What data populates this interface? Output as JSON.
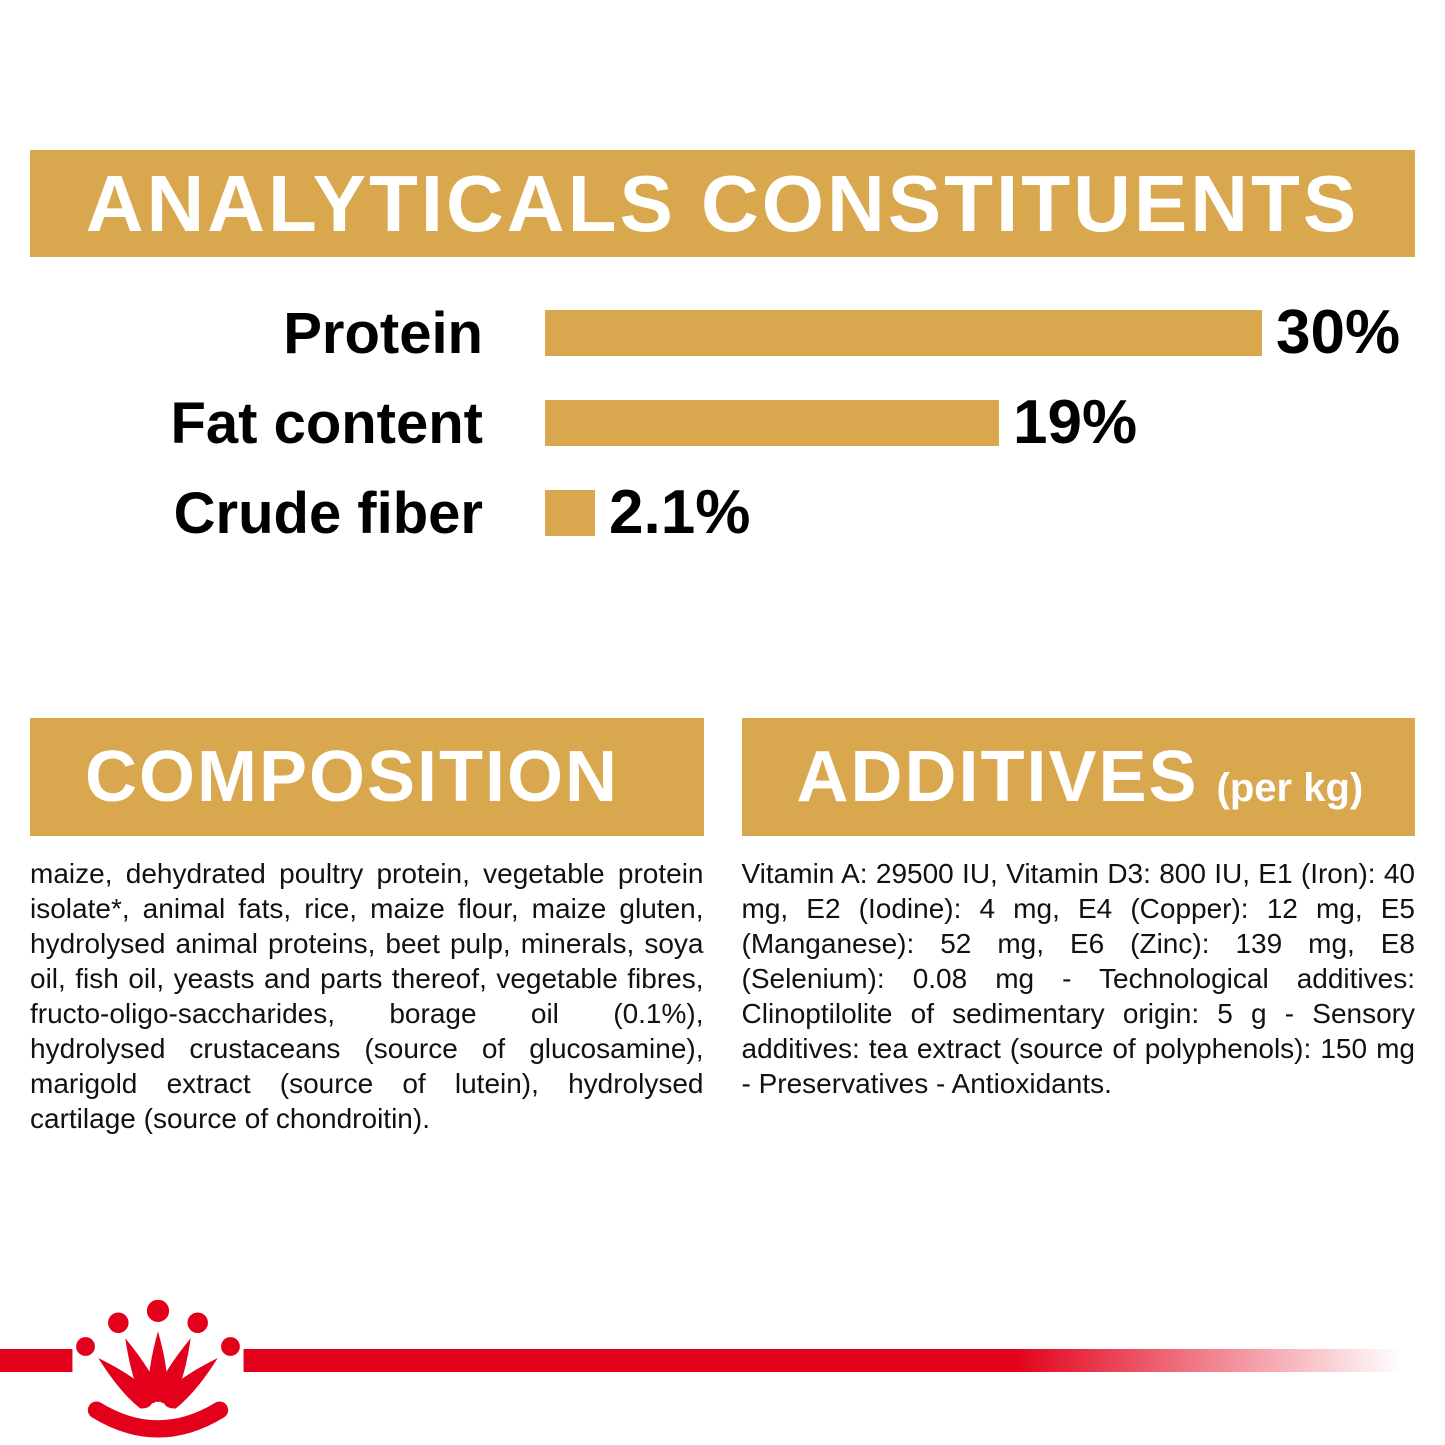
{
  "colors": {
    "gold": "#D8A74E",
    "red": "#E2001A",
    "text": "#111111",
    "banner_text": "#FFFFFF"
  },
  "analyticals": {
    "title": "ANALYTICALS CONSTITUENTS"
  },
  "chart_data": {
    "type": "bar",
    "orientation": "horizontal",
    "title": "ANALYTICALS CONSTITUENTS",
    "categories": [
      "Protein",
      "Fat content",
      "Crude fiber"
    ],
    "values": [
      30,
      19,
      2.1
    ],
    "value_labels": [
      "30%",
      "19%",
      "2.1%"
    ],
    "xlim": [
      0,
      30
    ],
    "bar_color": "#D8A74E",
    "grid": false,
    "legend": false
  },
  "composition": {
    "title": "COMPOSITION",
    "body": "maize, dehydrated poultry protein, vegetable protein isolate*, animal fats, rice, maize flour, maize gluten, hydrolysed animal proteins, beet pulp, minerals, soya oil, fish oil, yeasts and parts thereof, vegetable fibres, fructo-oligo-saccharides, borage oil (0.1%), hydrolysed crustaceans (source of glucosamine), marigold extract (source of lutein), hydrolysed cartilage (source of chondroitin)."
  },
  "additives": {
    "title": "ADDITIVES",
    "subtitle": "(per kg)",
    "body": "Vitamin A: 29500 IU, Vitamin D3: 800 IU, E1 (Iron): 40 mg, E2 (Iodine): 4 mg, E4 (Copper): 12 mg, E5 (Manganese): 52 mg, E6 (Zinc): 139 mg, E8 (Selenium): 0.08 mg - Technological additives: Clinoptilolite of sedimentary origin: 5 g - Sensory additives: tea extract (source of polyphenols): 150 mg - Preservatives - Antioxidants."
  },
  "footer": {
    "logo": "royal-canin-crown",
    "stripe_color": "#E2001A"
  }
}
